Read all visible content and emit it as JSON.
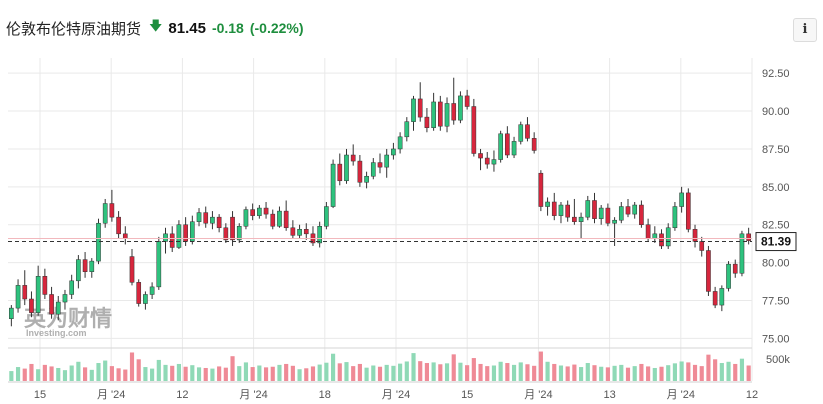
{
  "header": {
    "title": "伦敦布伦特原油期货",
    "direction_icon": "down-arrow-icon",
    "price": "81.45",
    "change": "-0.18",
    "change_pct": "(-0.22%)",
    "info_label": "i"
  },
  "colors": {
    "up": "#2ec27e",
    "down": "#d7263d",
    "vol_up": "#8fd9b6",
    "vol_down": "#ef8a96",
    "current_line": "#333333",
    "grid": "#e9e9e9"
  },
  "watermark": {
    "text": "英为财情",
    "sub": "Investing.com"
  },
  "chart_data": {
    "type": "candlestick",
    "title": "伦敦布伦特原油期货",
    "ylim": [
      74.5,
      93.5
    ],
    "yticks": [
      "92.50",
      "90.00",
      "87.50",
      "85.00",
      "82.50",
      "80.00",
      "77.50",
      "75.00"
    ],
    "current_price": 81.39,
    "current_price_label": "81.39",
    "volume_tick": "500k",
    "xticks": [
      "15",
      "月 '24",
      "12",
      "月 '24",
      "18",
      "月 '24",
      "15",
      "月 '24",
      "13",
      "月 '24",
      "12"
    ],
    "grid": true,
    "candles": [
      {
        "o": 76.3,
        "h": 77.2,
        "l": 75.8,
        "c": 77.0
      },
      {
        "o": 77.0,
        "h": 78.9,
        "l": 76.7,
        "c": 78.5
      },
      {
        "o": 78.5,
        "h": 79.5,
        "l": 77.2,
        "c": 77.6
      },
      {
        "o": 77.6,
        "h": 78.1,
        "l": 76.4,
        "c": 76.7
      },
      {
        "o": 76.7,
        "h": 79.8,
        "l": 76.5,
        "c": 79.1
      },
      {
        "o": 79.1,
        "h": 79.6,
        "l": 77.6,
        "c": 77.9
      },
      {
        "o": 77.9,
        "h": 78.4,
        "l": 76.3,
        "c": 76.6
      },
      {
        "o": 76.6,
        "h": 77.8,
        "l": 76.2,
        "c": 77.4
      },
      {
        "o": 77.4,
        "h": 78.2,
        "l": 76.9,
        "c": 77.9
      },
      {
        "o": 77.9,
        "h": 79.2,
        "l": 77.6,
        "c": 78.8
      },
      {
        "o": 78.8,
        "h": 80.5,
        "l": 78.3,
        "c": 80.2
      },
      {
        "o": 80.2,
        "h": 80.7,
        "l": 79.0,
        "c": 79.4
      },
      {
        "o": 79.4,
        "h": 80.3,
        "l": 79.0,
        "c": 80.1
      },
      {
        "o": 80.1,
        "h": 82.9,
        "l": 79.9,
        "c": 82.6
      },
      {
        "o": 82.6,
        "h": 84.2,
        "l": 82.3,
        "c": 83.9
      },
      {
        "o": 83.9,
        "h": 84.8,
        "l": 82.7,
        "c": 83.0
      },
      {
        "o": 83.0,
        "h": 83.4,
        "l": 81.6,
        "c": 81.9
      },
      {
        "o": 81.9,
        "h": 82.4,
        "l": 81.2,
        "c": 81.6
      },
      {
        "o": 80.4,
        "h": 80.9,
        "l": 78.5,
        "c": 78.7
      },
      {
        "o": 78.7,
        "h": 78.9,
        "l": 77.1,
        "c": 77.3
      },
      {
        "o": 77.3,
        "h": 78.1,
        "l": 76.9,
        "c": 77.9
      },
      {
        "o": 77.9,
        "h": 78.7,
        "l": 77.6,
        "c": 78.4
      },
      {
        "o": 78.4,
        "h": 81.7,
        "l": 78.2,
        "c": 81.4
      },
      {
        "o": 81.4,
        "h": 82.3,
        "l": 80.6,
        "c": 81.9
      },
      {
        "o": 81.9,
        "h": 82.4,
        "l": 80.7,
        "c": 81.0
      },
      {
        "o": 81.0,
        "h": 82.8,
        "l": 80.9,
        "c": 82.5
      },
      {
        "o": 82.5,
        "h": 83.0,
        "l": 81.1,
        "c": 81.4
      },
      {
        "o": 81.4,
        "h": 83.1,
        "l": 81.2,
        "c": 82.7
      },
      {
        "o": 82.7,
        "h": 83.6,
        "l": 82.4,
        "c": 83.3
      },
      {
        "o": 83.3,
        "h": 83.7,
        "l": 82.3,
        "c": 82.6
      },
      {
        "o": 82.6,
        "h": 83.4,
        "l": 82.2,
        "c": 83.0
      },
      {
        "o": 83.0,
        "h": 83.2,
        "l": 82.0,
        "c": 82.3
      },
      {
        "o": 82.3,
        "h": 82.6,
        "l": 81.3,
        "c": 81.5
      },
      {
        "o": 83.0,
        "h": 83.4,
        "l": 81.1,
        "c": 81.5
      },
      {
        "o": 81.5,
        "h": 82.6,
        "l": 81.3,
        "c": 82.4
      },
      {
        "o": 82.4,
        "h": 83.7,
        "l": 82.2,
        "c": 83.5
      },
      {
        "o": 83.5,
        "h": 83.9,
        "l": 82.8,
        "c": 83.1
      },
      {
        "o": 83.1,
        "h": 83.8,
        "l": 82.9,
        "c": 83.6
      },
      {
        "o": 83.6,
        "h": 84.0,
        "l": 82.9,
        "c": 83.2
      },
      {
        "o": 83.2,
        "h": 83.5,
        "l": 82.2,
        "c": 82.4
      },
      {
        "o": 82.4,
        "h": 83.7,
        "l": 82.3,
        "c": 83.4
      },
      {
        "o": 83.4,
        "h": 84.1,
        "l": 82.1,
        "c": 82.3
      },
      {
        "o": 82.3,
        "h": 82.8,
        "l": 81.6,
        "c": 81.8
      },
      {
        "o": 81.8,
        "h": 82.5,
        "l": 81.6,
        "c": 82.2
      },
      {
        "o": 82.2,
        "h": 82.6,
        "l": 81.5,
        "c": 81.9
      },
      {
        "o": 81.9,
        "h": 82.4,
        "l": 81.1,
        "c": 81.3
      },
      {
        "o": 81.3,
        "h": 82.7,
        "l": 81.0,
        "c": 82.4
      },
      {
        "o": 82.4,
        "h": 84.0,
        "l": 82.2,
        "c": 83.7
      },
      {
        "o": 83.7,
        "h": 86.8,
        "l": 83.6,
        "c": 86.5
      },
      {
        "o": 86.5,
        "h": 87.2,
        "l": 85.1,
        "c": 85.4
      },
      {
        "o": 85.4,
        "h": 87.5,
        "l": 85.2,
        "c": 87.1
      },
      {
        "o": 87.1,
        "h": 87.8,
        "l": 86.4,
        "c": 86.7
      },
      {
        "o": 86.7,
        "h": 87.1,
        "l": 85.0,
        "c": 85.3
      },
      {
        "o": 85.3,
        "h": 86.0,
        "l": 84.9,
        "c": 85.7
      },
      {
        "o": 85.7,
        "h": 86.9,
        "l": 85.5,
        "c": 86.6
      },
      {
        "o": 86.6,
        "h": 87.2,
        "l": 85.9,
        "c": 86.3
      },
      {
        "o": 86.3,
        "h": 87.5,
        "l": 85.6,
        "c": 87.1
      },
      {
        "o": 87.1,
        "h": 87.9,
        "l": 86.8,
        "c": 87.5
      },
      {
        "o": 87.5,
        "h": 88.6,
        "l": 87.2,
        "c": 88.3
      },
      {
        "o": 88.3,
        "h": 89.6,
        "l": 88.0,
        "c": 89.3
      },
      {
        "o": 89.3,
        "h": 91.0,
        "l": 88.7,
        "c": 90.8
      },
      {
        "o": 90.8,
        "h": 91.9,
        "l": 89.3,
        "c": 89.6
      },
      {
        "o": 89.6,
        "h": 90.2,
        "l": 88.6,
        "c": 88.9
      },
      {
        "o": 88.9,
        "h": 91.2,
        "l": 88.7,
        "c": 90.6
      },
      {
        "o": 90.6,
        "h": 91.0,
        "l": 88.7,
        "c": 89.0
      },
      {
        "o": 89.0,
        "h": 90.9,
        "l": 88.6,
        "c": 90.5
      },
      {
        "o": 90.5,
        "h": 92.2,
        "l": 89.1,
        "c": 89.4
      },
      {
        "o": 89.4,
        "h": 91.3,
        "l": 89.2,
        "c": 91.0
      },
      {
        "o": 91.0,
        "h": 91.4,
        "l": 90.1,
        "c": 90.3
      },
      {
        "o": 90.3,
        "h": 90.8,
        "l": 87.0,
        "c": 87.2
      },
      {
        "o": 87.2,
        "h": 87.5,
        "l": 86.1,
        "c": 86.9
      },
      {
        "o": 86.9,
        "h": 87.3,
        "l": 86.2,
        "c": 86.5
      },
      {
        "o": 86.5,
        "h": 87.4,
        "l": 86.0,
        "c": 86.8
      },
      {
        "o": 86.8,
        "h": 88.7,
        "l": 86.6,
        "c": 88.5
      },
      {
        "o": 88.5,
        "h": 89.0,
        "l": 86.9,
        "c": 87.1
      },
      {
        "o": 87.1,
        "h": 88.3,
        "l": 86.9,
        "c": 88.0
      },
      {
        "o": 88.0,
        "h": 89.3,
        "l": 87.8,
        "c": 89.1
      },
      {
        "o": 89.1,
        "h": 89.6,
        "l": 88.0,
        "c": 88.2
      },
      {
        "o": 88.2,
        "h": 88.6,
        "l": 87.2,
        "c": 87.4
      },
      {
        "o": 85.9,
        "h": 86.1,
        "l": 83.4,
        "c": 83.7
      },
      {
        "o": 83.7,
        "h": 84.3,
        "l": 83.1,
        "c": 84.0
      },
      {
        "o": 84.0,
        "h": 84.6,
        "l": 82.8,
        "c": 83.1
      },
      {
        "o": 83.1,
        "h": 84.0,
        "l": 82.6,
        "c": 83.8
      },
      {
        "o": 83.8,
        "h": 84.1,
        "l": 82.7,
        "c": 83.0
      },
      {
        "o": 83.0,
        "h": 84.2,
        "l": 82.5,
        "c": 82.7
      },
      {
        "o": 82.7,
        "h": 83.3,
        "l": 81.6,
        "c": 83.0
      },
      {
        "o": 83.0,
        "h": 84.4,
        "l": 82.8,
        "c": 84.1
      },
      {
        "o": 84.1,
        "h": 84.6,
        "l": 82.6,
        "c": 82.9
      },
      {
        "o": 82.9,
        "h": 83.8,
        "l": 82.5,
        "c": 83.6
      },
      {
        "o": 83.6,
        "h": 83.9,
        "l": 82.4,
        "c": 82.6
      },
      {
        "o": 82.6,
        "h": 83.0,
        "l": 81.1,
        "c": 82.8
      },
      {
        "o": 82.8,
        "h": 84.0,
        "l": 82.6,
        "c": 83.7
      },
      {
        "o": 83.7,
        "h": 84.2,
        "l": 83.0,
        "c": 83.2
      },
      {
        "o": 83.2,
        "h": 84.0,
        "l": 82.9,
        "c": 83.8
      },
      {
        "o": 83.8,
        "h": 84.1,
        "l": 82.3,
        "c": 82.5
      },
      {
        "o": 82.5,
        "h": 82.9,
        "l": 81.4,
        "c": 81.6
      },
      {
        "o": 81.6,
        "h": 82.4,
        "l": 81.3,
        "c": 81.9
      },
      {
        "o": 81.9,
        "h": 82.2,
        "l": 80.9,
        "c": 81.1
      },
      {
        "o": 81.1,
        "h": 82.6,
        "l": 80.9,
        "c": 82.3
      },
      {
        "o": 82.3,
        "h": 84.0,
        "l": 82.1,
        "c": 83.7
      },
      {
        "o": 83.7,
        "h": 85.0,
        "l": 83.3,
        "c": 84.6
      },
      {
        "o": 84.6,
        "h": 84.9,
        "l": 82.0,
        "c": 82.2
      },
      {
        "o": 82.2,
        "h": 82.5,
        "l": 81.0,
        "c": 81.4
      },
      {
        "o": 81.4,
        "h": 81.7,
        "l": 80.4,
        "c": 80.8
      },
      {
        "o": 80.8,
        "h": 81.1,
        "l": 77.8,
        "c": 78.1
      },
      {
        "o": 78.1,
        "h": 78.4,
        "l": 77.0,
        "c": 77.2
      },
      {
        "o": 77.2,
        "h": 78.5,
        "l": 76.8,
        "c": 78.3
      },
      {
        "o": 78.3,
        "h": 80.1,
        "l": 78.1,
        "c": 79.9
      },
      {
        "o": 79.9,
        "h": 80.2,
        "l": 79.0,
        "c": 79.3
      },
      {
        "o": 79.3,
        "h": 82.1,
        "l": 79.1,
        "c": 81.9
      },
      {
        "o": 81.9,
        "h": 82.3,
        "l": 81.2,
        "c": 81.45
      }
    ],
    "volume": [
      {
        "v": 0.32,
        "d": "up"
      },
      {
        "v": 0.45,
        "d": "up"
      },
      {
        "v": 0.4,
        "d": "down"
      },
      {
        "v": 0.55,
        "d": "down"
      },
      {
        "v": 0.38,
        "d": "up"
      },
      {
        "v": 0.52,
        "d": "down"
      },
      {
        "v": 0.47,
        "d": "down"
      },
      {
        "v": 0.42,
        "d": "up"
      },
      {
        "v": 0.35,
        "d": "up"
      },
      {
        "v": 0.5,
        "d": "up"
      },
      {
        "v": 0.62,
        "d": "up"
      },
      {
        "v": 0.44,
        "d": "down"
      },
      {
        "v": 0.36,
        "d": "up"
      },
      {
        "v": 0.58,
        "d": "up"
      },
      {
        "v": 0.66,
        "d": "up"
      },
      {
        "v": 0.48,
        "d": "down"
      },
      {
        "v": 0.41,
        "d": "down"
      },
      {
        "v": 0.37,
        "d": "down"
      },
      {
        "v": 0.92,
        "d": "down"
      },
      {
        "v": 0.7,
        "d": "down"
      },
      {
        "v": 0.45,
        "d": "up"
      },
      {
        "v": 0.4,
        "d": "up"
      },
      {
        "v": 0.68,
        "d": "up"
      },
      {
        "v": 0.52,
        "d": "up"
      },
      {
        "v": 0.49,
        "d": "down"
      },
      {
        "v": 0.55,
        "d": "up"
      },
      {
        "v": 0.46,
        "d": "down"
      },
      {
        "v": 0.51,
        "d": "up"
      },
      {
        "v": 0.44,
        "d": "up"
      },
      {
        "v": 0.42,
        "d": "down"
      },
      {
        "v": 0.4,
        "d": "up"
      },
      {
        "v": 0.47,
        "d": "down"
      },
      {
        "v": 0.43,
        "d": "down"
      },
      {
        "v": 0.8,
        "d": "down"
      },
      {
        "v": 0.48,
        "d": "up"
      },
      {
        "v": 0.6,
        "d": "up"
      },
      {
        "v": 0.45,
        "d": "down"
      },
      {
        "v": 0.5,
        "d": "up"
      },
      {
        "v": 0.44,
        "d": "down"
      },
      {
        "v": 0.46,
        "d": "down"
      },
      {
        "v": 0.52,
        "d": "up"
      },
      {
        "v": 0.55,
        "d": "down"
      },
      {
        "v": 0.49,
        "d": "down"
      },
      {
        "v": 0.38,
        "d": "up"
      },
      {
        "v": 0.41,
        "d": "down"
      },
      {
        "v": 0.47,
        "d": "down"
      },
      {
        "v": 0.53,
        "d": "up"
      },
      {
        "v": 0.59,
        "d": "up"
      },
      {
        "v": 0.88,
        "d": "up"
      },
      {
        "v": 0.57,
        "d": "down"
      },
      {
        "v": 0.61,
        "d": "up"
      },
      {
        "v": 0.48,
        "d": "down"
      },
      {
        "v": 0.55,
        "d": "down"
      },
      {
        "v": 0.43,
        "d": "up"
      },
      {
        "v": 0.5,
        "d": "up"
      },
      {
        "v": 0.46,
        "d": "down"
      },
      {
        "v": 0.52,
        "d": "up"
      },
      {
        "v": 0.49,
        "d": "up"
      },
      {
        "v": 0.56,
        "d": "up"
      },
      {
        "v": 0.63,
        "d": "up"
      },
      {
        "v": 0.9,
        "d": "up"
      },
      {
        "v": 0.64,
        "d": "down"
      },
      {
        "v": 0.58,
        "d": "down"
      },
      {
        "v": 0.6,
        "d": "up"
      },
      {
        "v": 0.54,
        "d": "down"
      },
      {
        "v": 0.57,
        "d": "up"
      },
      {
        "v": 0.86,
        "d": "down"
      },
      {
        "v": 0.59,
        "d": "up"
      },
      {
        "v": 0.51,
        "d": "down"
      },
      {
        "v": 0.74,
        "d": "down"
      },
      {
        "v": 0.55,
        "d": "down"
      },
      {
        "v": 0.48,
        "d": "down"
      },
      {
        "v": 0.5,
        "d": "up"
      },
      {
        "v": 0.62,
        "d": "up"
      },
      {
        "v": 0.58,
        "d": "down"
      },
      {
        "v": 0.52,
        "d": "up"
      },
      {
        "v": 0.6,
        "d": "up"
      },
      {
        "v": 0.54,
        "d": "down"
      },
      {
        "v": 0.49,
        "d": "down"
      },
      {
        "v": 0.95,
        "d": "down"
      },
      {
        "v": 0.62,
        "d": "up"
      },
      {
        "v": 0.55,
        "d": "down"
      },
      {
        "v": 0.5,
        "d": "up"
      },
      {
        "v": 0.47,
        "d": "down"
      },
      {
        "v": 0.53,
        "d": "down"
      },
      {
        "v": 0.45,
        "d": "up"
      },
      {
        "v": 0.58,
        "d": "up"
      },
      {
        "v": 0.51,
        "d": "down"
      },
      {
        "v": 0.46,
        "d": "up"
      },
      {
        "v": 0.44,
        "d": "down"
      },
      {
        "v": 0.49,
        "d": "up"
      },
      {
        "v": 0.52,
        "d": "up"
      },
      {
        "v": 0.43,
        "d": "down"
      },
      {
        "v": 0.48,
        "d": "up"
      },
      {
        "v": 0.55,
        "d": "down"
      },
      {
        "v": 0.47,
        "d": "down"
      },
      {
        "v": 0.42,
        "d": "up"
      },
      {
        "v": 0.46,
        "d": "down"
      },
      {
        "v": 0.51,
        "d": "up"
      },
      {
        "v": 0.57,
        "d": "up"
      },
      {
        "v": 0.63,
        "d": "up"
      },
      {
        "v": 0.6,
        "d": "down"
      },
      {
        "v": 0.52,
        "d": "down"
      },
      {
        "v": 0.48,
        "d": "down"
      },
      {
        "v": 0.85,
        "d": "down"
      },
      {
        "v": 0.7,
        "d": "down"
      },
      {
        "v": 0.58,
        "d": "up"
      },
      {
        "v": 0.62,
        "d": "up"
      },
      {
        "v": 0.55,
        "d": "down"
      },
      {
        "v": 0.72,
        "d": "up"
      },
      {
        "v": 0.5,
        "d": "down"
      }
    ]
  }
}
